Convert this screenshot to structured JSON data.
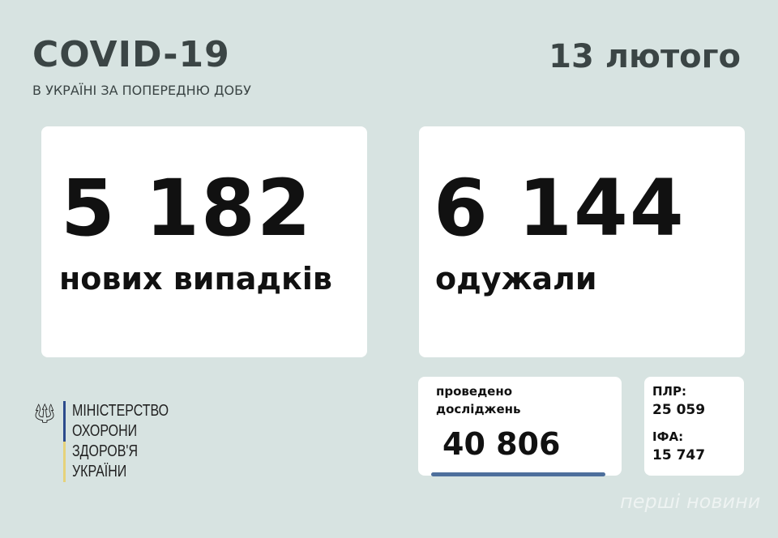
{
  "header": {
    "title": "COVID-19",
    "subtitle": "В УКРАЇНІ ЗА ПОПЕРЕДНЮ ДОБУ",
    "date": "13 лютого"
  },
  "new_cases": {
    "value": "5 182",
    "label": "нових випадків"
  },
  "recovered": {
    "value": "6 144",
    "label": "одужали"
  },
  "tests": {
    "label_line1": "проведено",
    "label_line2": "досліджень",
    "value": "40 806"
  },
  "breakdown": {
    "pcr_label": "ПЛР:",
    "pcr_value": "25 059",
    "ifa_label": "ІФА:",
    "ifa_value": "15 747"
  },
  "ministry": {
    "lines": [
      "МІНІСТЕРСТВО",
      "ОХОРОНИ",
      "ЗДОРОВ'Я",
      "УКРАЇНИ"
    ],
    "icon": "trident-icon"
  },
  "watermark": {
    "text": "перші новини"
  },
  "colors": {
    "background": "#d7e3e1",
    "title": "#3b4545",
    "accent": "#4d6f9c"
  }
}
